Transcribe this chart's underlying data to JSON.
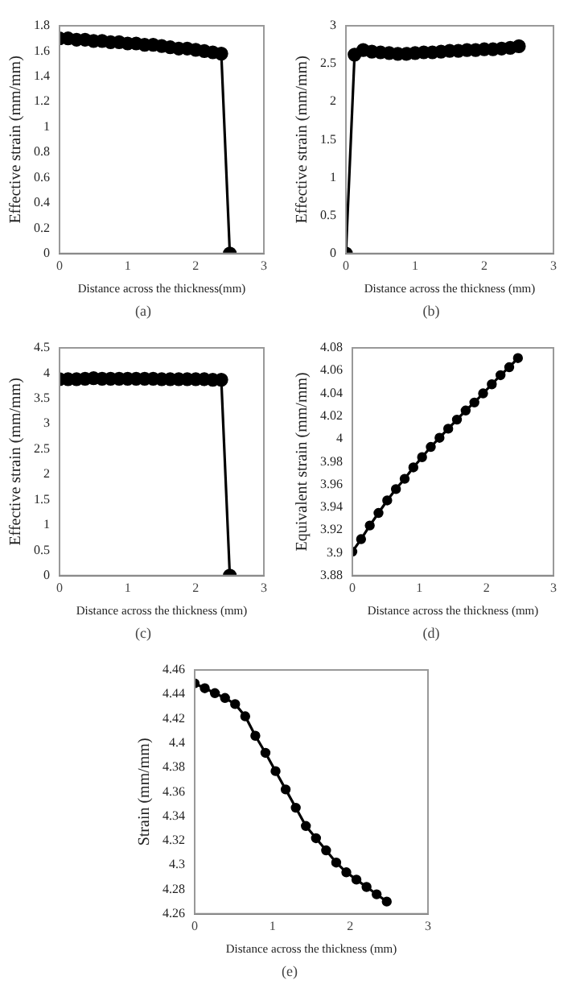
{
  "chart_data": [
    {
      "type": "line",
      "xlabel": "Distance across the thickness(mm)",
      "ylabel": "Effective strain (mm/mm)",
      "annotations": [
        "(a)"
      ],
      "xlim": [
        0,
        3
      ],
      "xticks": [
        0,
        1,
        2,
        3
      ],
      "ylim": [
        0,
        1.8
      ],
      "yticks": [
        0,
        0.2,
        0.4,
        0.6,
        0.8,
        1,
        1.2,
        1.4,
        1.6,
        1.8
      ],
      "grid": false,
      "legend": false,
      "marker": "circle",
      "x": [
        0,
        0.125,
        0.25,
        0.375,
        0.5,
        0.625,
        0.75,
        0.875,
        1,
        1.125,
        1.25,
        1.375,
        1.5,
        1.625,
        1.75,
        1.875,
        2,
        2.125,
        2.25,
        2.375,
        2.5
      ],
      "series": [
        {
          "color": "#000000",
          "values": [
            1.7,
            1.7,
            1.69,
            1.69,
            1.68,
            1.68,
            1.67,
            1.67,
            1.66,
            1.66,
            1.65,
            1.65,
            1.64,
            1.63,
            1.62,
            1.62,
            1.61,
            1.6,
            1.59,
            1.58,
            0
          ]
        }
      ]
    },
    {
      "type": "line",
      "xlabel": "Distance across the thickness (mm)",
      "ylabel": "Effective strain (mm/mm)",
      "annotations": [
        "(b)"
      ],
      "xlim": [
        0,
        3
      ],
      "xticks": [
        0,
        1,
        2,
        3
      ],
      "ylim": [
        0,
        3
      ],
      "yticks": [
        0,
        0.5,
        1,
        1.5,
        2,
        2.5,
        3
      ],
      "grid": false,
      "legend": false,
      "marker": "circle",
      "x": [
        0,
        0.125,
        0.25,
        0.375,
        0.5,
        0.625,
        0.75,
        0.875,
        1,
        1.125,
        1.25,
        1.375,
        1.5,
        1.625,
        1.75,
        1.875,
        2,
        2.125,
        2.25,
        2.375,
        2.5
      ],
      "series": [
        {
          "color": "#000000",
          "values": [
            0,
            2.62,
            2.68,
            2.66,
            2.65,
            2.64,
            2.63,
            2.63,
            2.64,
            2.65,
            2.65,
            2.66,
            2.67,
            2.67,
            2.68,
            2.68,
            2.69,
            2.69,
            2.7,
            2.71,
            2.73
          ]
        }
      ]
    },
    {
      "type": "line",
      "xlabel": "Distance across the thickness (mm)",
      "ylabel": "Effective strain (mm/mm)",
      "annotations": [
        "(c)"
      ],
      "xlim": [
        0,
        3
      ],
      "xticks": [
        0,
        1,
        2,
        3
      ],
      "ylim": [
        0,
        4.5
      ],
      "yticks": [
        0,
        0.5,
        1,
        1.5,
        2,
        2.5,
        3,
        3.5,
        4,
        4.5
      ],
      "grid": false,
      "legend": false,
      "marker": "circle",
      "x": [
        0,
        0.125,
        0.25,
        0.375,
        0.5,
        0.625,
        0.75,
        0.875,
        1,
        1.125,
        1.25,
        1.375,
        1.5,
        1.625,
        1.75,
        1.875,
        2,
        2.125,
        2.25,
        2.375,
        2.5
      ],
      "series": [
        {
          "color": "#000000",
          "values": [
            3.88,
            3.88,
            3.88,
            3.89,
            3.9,
            3.89,
            3.89,
            3.89,
            3.89,
            3.89,
            3.89,
            3.89,
            3.88,
            3.88,
            3.88,
            3.88,
            3.88,
            3.88,
            3.87,
            3.87,
            0
          ]
        }
      ]
    },
    {
      "type": "line",
      "xlabel": "Distance across the thickness (mm)",
      "ylabel": "Equivalent strain (mm/mm)",
      "annotations": [
        "(d)"
      ],
      "xlim": [
        0,
        3
      ],
      "xticks": [
        0,
        1,
        2,
        3
      ],
      "ylim": [
        3.88,
        4.08
      ],
      "yticks": [
        3.88,
        3.9,
        3.92,
        3.94,
        3.96,
        3.98,
        4,
        4.02,
        4.04,
        4.06,
        4.08
      ],
      "grid": false,
      "legend": false,
      "marker": "circle",
      "x": [
        0,
        0.13,
        0.26,
        0.39,
        0.52,
        0.65,
        0.78,
        0.91,
        1.04,
        1.17,
        1.3,
        1.43,
        1.56,
        1.69,
        1.82,
        1.95,
        2.08,
        2.21,
        2.34,
        2.47
      ],
      "series": [
        {
          "color": "#000000",
          "values": [
            3.901,
            3.912,
            3.924,
            3.935,
            3.946,
            3.956,
            3.965,
            3.975,
            3.984,
            3.993,
            4.001,
            4.009,
            4.017,
            4.025,
            4.032,
            4.04,
            4.048,
            4.056,
            4.063,
            4.071
          ]
        }
      ]
    },
    {
      "type": "line",
      "xlabel": "Distance across the thickness (mm)",
      "ylabel": "Strain (mm/mm)",
      "annotations": [
        "(e)"
      ],
      "xlim": [
        0,
        3
      ],
      "xticks": [
        0,
        1,
        2,
        3
      ],
      "ylim": [
        4.26,
        4.46
      ],
      "yticks": [
        4.26,
        4.28,
        4.3,
        4.32,
        4.34,
        4.36,
        4.38,
        4.4,
        4.42,
        4.44,
        4.46
      ],
      "grid": false,
      "legend": false,
      "marker": "circle",
      "x": [
        0,
        0.13,
        0.26,
        0.39,
        0.52,
        0.65,
        0.78,
        0.91,
        1.04,
        1.17,
        1.3,
        1.43,
        1.56,
        1.69,
        1.82,
        1.95,
        2.08,
        2.21,
        2.34,
        2.47
      ],
      "series": [
        {
          "color": "#000000",
          "values": [
            4.449,
            4.445,
            4.441,
            4.437,
            4.432,
            4.422,
            4.406,
            4.392,
            4.377,
            4.362,
            4.347,
            4.332,
            4.322,
            4.312,
            4.302,
            4.294,
            4.288,
            4.282,
            4.276,
            4.27
          ]
        }
      ]
    }
  ]
}
